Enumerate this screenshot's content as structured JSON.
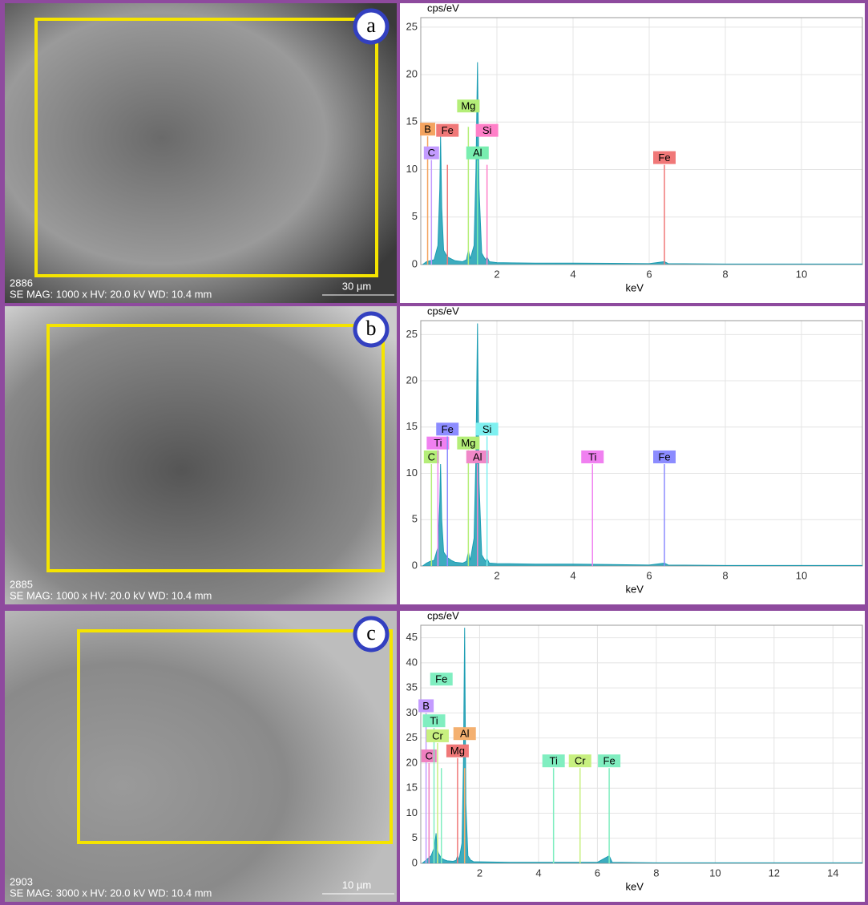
{
  "images": [
    {
      "label": "a",
      "id": "2886",
      "info": "SE MAG: 1000 x HV: 20.0 kV WD: 10.4 mm",
      "scale": "30 µm"
    },
    {
      "label": "b",
      "id": "2885",
      "info": "SE MAG: 1000 x HV: 20.0 kV WD: 10.4 mm"
    },
    {
      "label": "c",
      "id": "2903",
      "info": "SE MAG: 3000 x HV: 20.0 kV WD: 10.4 mm",
      "scale": "10 µm"
    }
  ],
  "chart_data": [
    {
      "type": "line",
      "ylabel": "cps/eV",
      "xlabel": "keV",
      "xlim": [
        0,
        11.6
      ],
      "ylim": [
        0,
        26
      ],
      "xticks": [
        2,
        4,
        6,
        8,
        10
      ],
      "yticks": [
        0,
        5,
        10,
        15,
        20,
        25
      ],
      "grid": true,
      "series": [
        {
          "color": "#1b9db3",
          "x": [
            0.05,
            0.15,
            0.25,
            0.35,
            0.45,
            0.5,
            0.52,
            0.55,
            0.6,
            0.7,
            0.8,
            0.9,
            1.1,
            1.2,
            1.25,
            1.3,
            1.4,
            1.45,
            1.49,
            1.53,
            1.6,
            1.7,
            1.74,
            1.8,
            2.0,
            3.0,
            4.0,
            6.0,
            6.4,
            6.5,
            8.0,
            11.6
          ],
          "values": [
            0,
            0.3,
            0.4,
            0.5,
            2,
            8,
            13.5,
            6,
            1.5,
            0.8,
            0.6,
            0.4,
            0.3,
            0.5,
            1.5,
            0.6,
            2,
            10,
            21.3,
            8,
            1.2,
            0.5,
            0.8,
            0.3,
            0.2,
            0.15,
            0.15,
            0.1,
            0.3,
            0.1,
            0.05,
            0.05
          ]
        }
      ],
      "lines": [
        {
          "element": "B",
          "x": 0.18,
          "height": 13.5,
          "color": "#f4a460"
        },
        {
          "element": "C",
          "x": 0.28,
          "height": 11,
          "color": "#c39bff"
        },
        {
          "element": "Fe",
          "x": 0.7,
          "height": 10.5,
          "color": "#f07878"
        },
        {
          "element": "Mg",
          "x": 1.25,
          "height": 14.5,
          "color": "#b4ee78"
        },
        {
          "element": "Al",
          "x": 1.49,
          "height": 11,
          "color": "#78eeb0"
        },
        {
          "element": "Si",
          "x": 1.74,
          "height": 10.5,
          "color": "#ff80c8"
        },
        {
          "element": "Fe",
          "x": 6.4,
          "height": 10.5,
          "color": "#f07878"
        }
      ]
    },
    {
      "type": "line",
      "ylabel": "cps/eV",
      "xlabel": "keV",
      "xlim": [
        0,
        11.6
      ],
      "ylim": [
        0,
        26.5
      ],
      "xticks": [
        2,
        4,
        6,
        8,
        10
      ],
      "yticks": [
        0,
        5,
        10,
        15,
        20,
        25
      ],
      "grid": true,
      "series": [
        {
          "color": "#1b9db3",
          "x": [
            0.05,
            0.15,
            0.25,
            0.35,
            0.45,
            0.5,
            0.52,
            0.55,
            0.6,
            0.7,
            0.8,
            0.9,
            1.1,
            1.2,
            1.25,
            1.3,
            1.4,
            1.45,
            1.49,
            1.53,
            1.6,
            1.7,
            1.74,
            1.8,
            2.0,
            3.0,
            4.0,
            6.0,
            6.4,
            6.5,
            8.0,
            11.6
          ],
          "values": [
            0,
            0.3,
            0.5,
            0.6,
            2,
            7,
            11,
            5,
            1.5,
            0.9,
            0.6,
            0.4,
            0.3,
            0.5,
            1.5,
            0.6,
            3,
            12,
            26.2,
            9,
            1.2,
            0.5,
            0.8,
            0.3,
            0.25,
            0.2,
            0.2,
            0.1,
            0.3,
            0.1,
            0.05,
            0.05
          ]
        }
      ],
      "lines": [
        {
          "element": "C",
          "x": 0.28,
          "height": 11,
          "color": "#b4ee78"
        },
        {
          "element": "Ti",
          "x": 0.45,
          "height": 12.5,
          "color": "#f080f0"
        },
        {
          "element": "Fe",
          "x": 0.7,
          "height": 14,
          "color": "#8c8cff"
        },
        {
          "element": "Mg",
          "x": 1.25,
          "height": 12.5,
          "color": "#b4ee78"
        },
        {
          "element": "Al",
          "x": 1.49,
          "height": 11,
          "color": "#f088c8"
        },
        {
          "element": "Si",
          "x": 1.74,
          "height": 14,
          "color": "#7ef0f0"
        },
        {
          "element": "Ti",
          "x": 4.51,
          "height": 11,
          "color": "#f080f0"
        },
        {
          "element": "Fe",
          "x": 6.4,
          "height": 11,
          "color": "#8c8cff"
        }
      ]
    },
    {
      "type": "line",
      "ylabel": "cps/eV",
      "xlabel": "keV",
      "xlim": [
        0,
        15
      ],
      "ylim": [
        0,
        47.5
      ],
      "xticks": [
        2,
        4,
        6,
        8,
        10,
        12,
        14
      ],
      "yticks": [
        0,
        5,
        10,
        15,
        20,
        25,
        30,
        35,
        40,
        45
      ],
      "grid": true,
      "series": [
        {
          "color": "#1b9db3",
          "x": [
            0.05,
            0.15,
            0.25,
            0.35,
            0.45,
            0.5,
            0.52,
            0.55,
            0.6,
            0.7,
            0.8,
            0.9,
            1.1,
            1.2,
            1.25,
            1.3,
            1.4,
            1.45,
            1.49,
            1.53,
            1.6,
            1.7,
            1.74,
            1.8,
            2.0,
            3.0,
            4.0,
            6.0,
            6.4,
            6.5,
            8.0,
            15
          ],
          "values": [
            0,
            0.5,
            1,
            1.5,
            3,
            5,
            6,
            3,
            2,
            1,
            0.7,
            0.5,
            0.4,
            0.6,
            1.5,
            0.7,
            4,
            20,
            47,
            12,
            1.5,
            0.6,
            0.5,
            0.3,
            0.3,
            0.2,
            0.2,
            0.2,
            1.5,
            0.2,
            0.1,
            0.1
          ]
        }
      ],
      "lines": [
        {
          "element": "B",
          "x": 0.18,
          "height": 30,
          "color": "#c39bff"
        },
        {
          "element": "C",
          "x": 0.28,
          "height": 20,
          "color": "#f080c0"
        },
        {
          "element": "Ti",
          "x": 0.45,
          "height": 27,
          "color": "#80eec0"
        },
        {
          "element": "Cr",
          "x": 0.57,
          "height": 24,
          "color": "#c8f080"
        },
        {
          "element": "Fe",
          "x": 0.7,
          "height": 19,
          "color": "#80eec0"
        },
        {
          "element": "Mg",
          "x": 1.25,
          "height": 21,
          "color": "#f07878"
        },
        {
          "element": "Al",
          "x": 1.49,
          "height": 19,
          "color": "#f4b070"
        },
        {
          "element": "Ti",
          "x": 4.51,
          "height": 19,
          "color": "#80eec0"
        },
        {
          "element": "Cr",
          "x": 5.41,
          "height": 19,
          "color": "#c8f080"
        },
        {
          "element": "Fe",
          "x": 6.4,
          "height": 19,
          "color": "#80eec0"
        }
      ]
    }
  ]
}
